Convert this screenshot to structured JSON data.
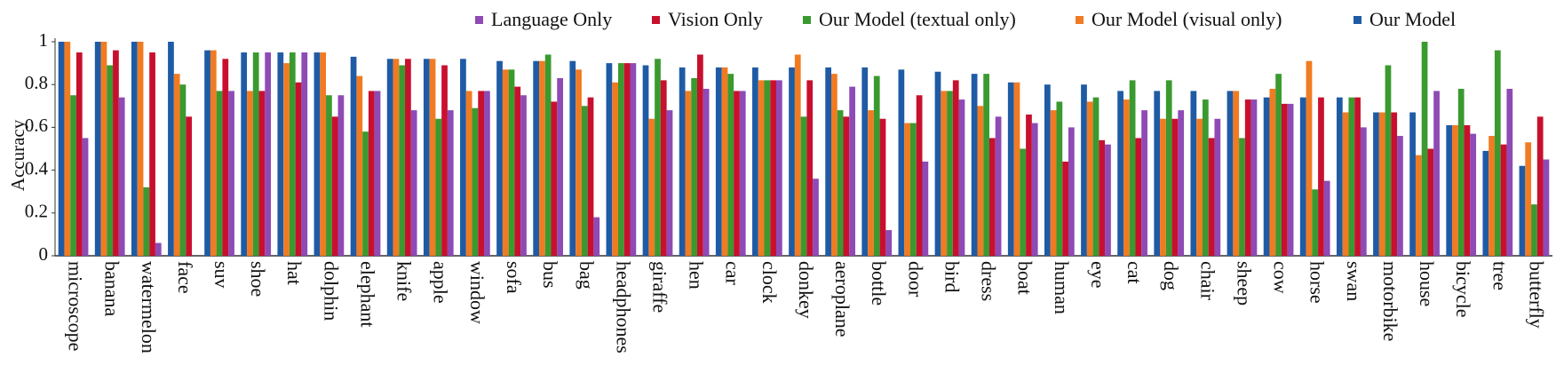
{
  "chart_data": {
    "type": "bar",
    "y_label": "Accuracy",
    "categories": [
      "microscope",
      "banana",
      "watermelon",
      "face",
      "suv",
      "shoe",
      "hat",
      "dolphin",
      "elephant",
      "knife",
      "apple",
      "window",
      "sofa",
      "bus",
      "bag",
      "headphones",
      "giraffe",
      "hen",
      "car",
      "clock",
      "donkey",
      "aeroplane",
      "bottle",
      "door",
      "bird",
      "dress",
      "boat",
      "human",
      "eye",
      "cat",
      "dog",
      "chair",
      "sheep",
      "cow",
      "horse",
      "swan",
      "motorbike",
      "house",
      "bicycle",
      "tree",
      "butterfly"
    ],
    "series": [
      {
        "name": "Language Only",
        "color": "#8e4ab5",
        "values": [
          0.55,
          0.74,
          0.06,
          0,
          0.77,
          0.95,
          0.95,
          0.75,
          0.77,
          0.68,
          0.68,
          0.77,
          0.75,
          0.83,
          0.18,
          0.9,
          0.68,
          0.78,
          0.77,
          0.82,
          0.36,
          0.79,
          0.12,
          0.44,
          0.73,
          0.65,
          0.62,
          0.6,
          0.52,
          0.68,
          0.68,
          0.64,
          0.73,
          0.71,
          0.35,
          0.6,
          0.56,
          0.77,
          0.57,
          0.78,
          0.45
        ]
      },
      {
        "name": "Vision Only",
        "color": "#c8102e",
        "values": [
          0.95,
          0.96,
          0.95,
          0.65,
          0.92,
          0.77,
          0.81,
          0.65,
          0.77,
          0.92,
          0.89,
          0.77,
          0.79,
          0.72,
          0.74,
          0.9,
          0.82,
          0.94,
          0.77,
          0.82,
          0.82,
          0.65,
          0.64,
          0.75,
          0.82,
          0.55,
          0.66,
          0.44,
          0.54,
          0.55,
          0.64,
          0.55,
          0.73,
          0.71,
          0.74,
          0.74,
          0.67,
          0.5,
          0.61,
          0.52,
          0.65
        ]
      },
      {
        "name": "Our Model (textual only)",
        "color": "#3a9a2f",
        "values": [
          0.75,
          0.89,
          0.32,
          0.8,
          0.77,
          0.95,
          0.95,
          0.75,
          0.58,
          0.89,
          0.64,
          0.69,
          0.87,
          0.94,
          0.7,
          0.9,
          0.92,
          0.83,
          0.85,
          0.82,
          0.65,
          0.68,
          0.84,
          0.62,
          0.77,
          0.85,
          0.5,
          0.72,
          0.74,
          0.82,
          0.82,
          0.73,
          0.55,
          0.85,
          0.31,
          0.74,
          0.89,
          1,
          0.78,
          0.96,
          0.24
        ]
      },
      {
        "name": "Our Model (visual only)",
        "color": "#f07b22",
        "values": [
          1,
          1,
          1,
          0.85,
          0.96,
          0.77,
          0.9,
          0.95,
          0.84,
          0.92,
          0.92,
          0.77,
          0.87,
          0.91,
          0.87,
          0.81,
          0.64,
          0.77,
          0.88,
          0.82,
          0.94,
          0.85,
          0.68,
          0.62,
          0.77,
          0.7,
          0.81,
          0.68,
          0.72,
          0.73,
          0.64,
          0.64,
          0.77,
          0.78,
          0.91,
          0.67,
          0.67,
          0.47,
          0.61,
          0.56,
          0.53
        ]
      },
      {
        "name": "Our Model",
        "color": "#1f5ba5",
        "values": [
          1,
          1,
          1,
          1,
          0.96,
          0.95,
          0.95,
          0.95,
          0.93,
          0.92,
          0.92,
          0.92,
          0.91,
          0.91,
          0.91,
          0.9,
          0.89,
          0.88,
          0.88,
          0.88,
          0.88,
          0.88,
          0.88,
          0.87,
          0.86,
          0.85,
          0.81,
          0.8,
          0.8,
          0.77,
          0.77,
          0.77,
          0.77,
          0.74,
          0.74,
          0.74,
          0.67,
          0.67,
          0.61,
          0.49,
          0.42
        ]
      }
    ],
    "ylim": [
      0,
      1
    ],
    "yticks": [
      0,
      0.2,
      0.4,
      0.6,
      0.8,
      1
    ],
    "grid": false
  }
}
